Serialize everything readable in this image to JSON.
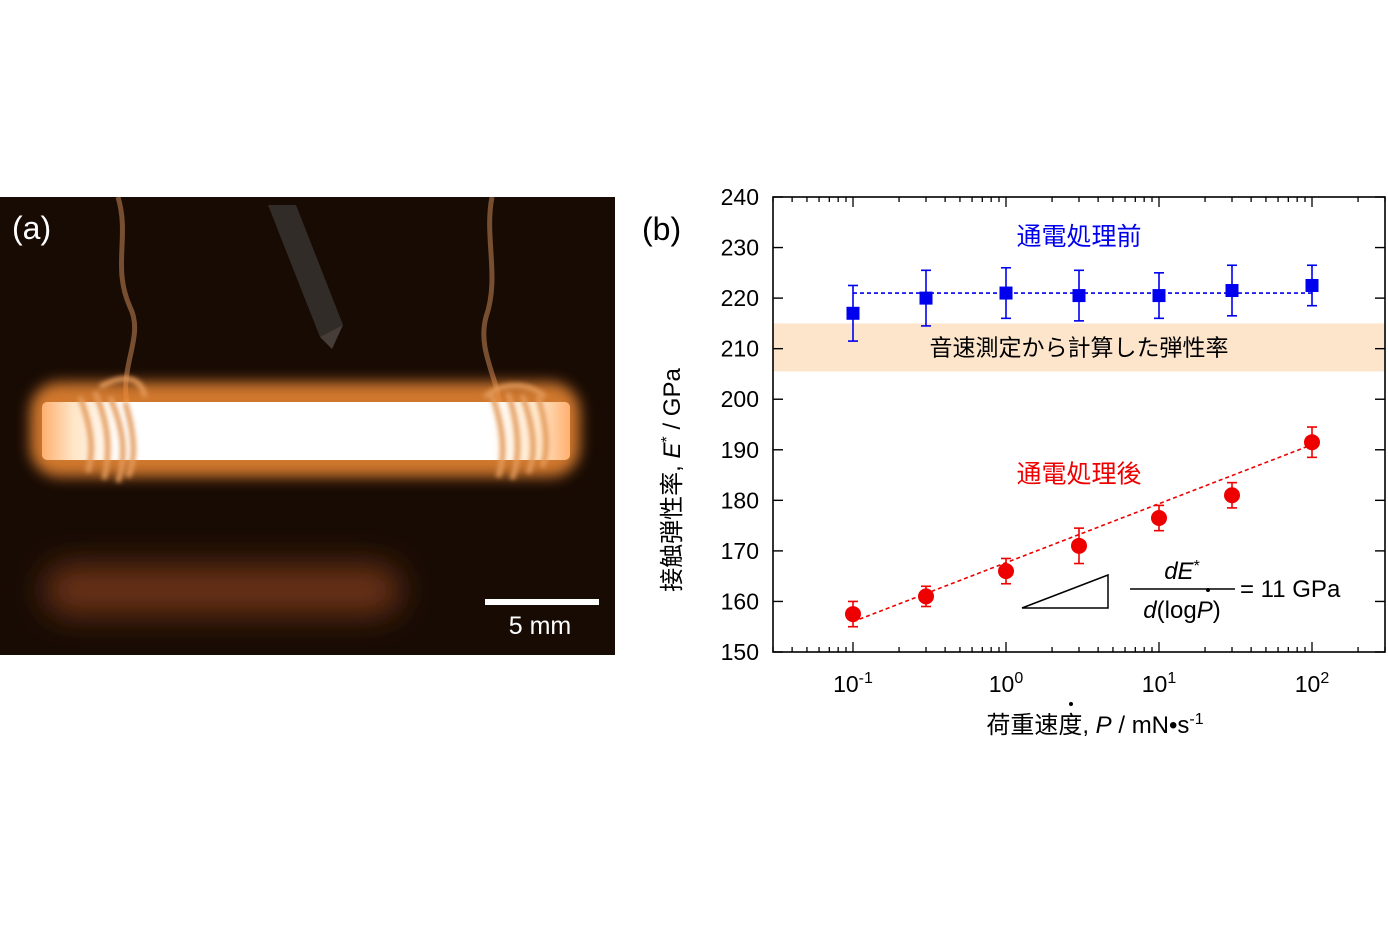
{
  "photo": {
    "panel_label": "(a)",
    "scale_bar_label": "5 mm",
    "colors": {
      "background": "#1a0c05",
      "glow": "#ffffff",
      "glow_edge": "#f59a45",
      "wire": "#c8834a"
    }
  },
  "chart_data": {
    "type": "scatter",
    "panel_label": "(b)",
    "xlabel": "荷重速度, P / mN•s-1",
    "xlabel_parts": {
      "prefix": "荷重速度, ",
      "symbol": "P",
      "unit": " / mN•s",
      "exp": "-1"
    },
    "ylabel": "接触弾性率, E* / GPa",
    "ylabel_parts": {
      "prefix": "接触弾性率, ",
      "symbol": "E",
      "sup": "*",
      "unit": " / GPa"
    },
    "x_scale": "log",
    "xlim": [
      0.03,
      300
    ],
    "ylim": [
      150,
      240
    ],
    "x_tick_labels": [
      {
        "value": 0.1,
        "base": "10",
        "exp": "-1"
      },
      {
        "value": 1,
        "base": "10",
        "exp": "0"
      },
      {
        "value": 10,
        "base": "10",
        "exp": "1"
      },
      {
        "value": 100,
        "base": "10",
        "exp": "2"
      }
    ],
    "y_ticks": [
      150,
      160,
      170,
      180,
      190,
      200,
      210,
      220,
      230,
      240
    ],
    "y_tick_labels": [
      "150",
      "160",
      "170",
      "180",
      "190",
      "200",
      "210",
      "220",
      "230",
      "240"
    ],
    "grid": false,
    "series": [
      {
        "name": "通電処理前",
        "color": "#0000ee",
        "marker": "square",
        "line": "dotted",
        "points": [
          {
            "x": 0.1,
            "y": 217,
            "err": 5.5
          },
          {
            "x": 0.3,
            "y": 220,
            "err": 5.5
          },
          {
            "x": 1,
            "y": 221,
            "err": 5
          },
          {
            "x": 3,
            "y": 220.5,
            "err": 5
          },
          {
            "x": 10,
            "y": 220.5,
            "err": 4.5
          },
          {
            "x": 30,
            "y": 221.5,
            "err": 5
          },
          {
            "x": 100,
            "y": 222.5,
            "err": 4
          }
        ],
        "fit_line": {
          "x": [
            0.1,
            100
          ],
          "y": [
            221,
            221
          ]
        }
      },
      {
        "name": "通電処理後",
        "color": "#ee0000",
        "marker": "circle",
        "line": "dotted",
        "points": [
          {
            "x": 0.1,
            "y": 157.5,
            "err": 2.5
          },
          {
            "x": 0.3,
            "y": 161,
            "err": 2
          },
          {
            "x": 1,
            "y": 166,
            "err": 2.5
          },
          {
            "x": 3,
            "y": 171,
            "err": 3.5
          },
          {
            "x": 10,
            "y": 176.5,
            "err": 2.5
          },
          {
            "x": 30,
            "y": 181,
            "err": 2.5
          },
          {
            "x": 100,
            "y": 191.5,
            "err": 3
          }
        ],
        "fit_line": {
          "x": [
            0.1,
            100
          ],
          "y": [
            156,
            191
          ]
        }
      }
    ],
    "band": {
      "y": [
        205.5,
        215
      ],
      "label": "音速測定から計算した弾性率",
      "color": "#fde5cc"
    },
    "annotations": {
      "slope_numerator": {
        "prefix": "d",
        "symbol": "E",
        "sup": "*"
      },
      "slope_denominator": {
        "prefix": "d",
        "open": "(log",
        "symbol": "P",
        "close": ")"
      },
      "slope_value": "= 11 GPa"
    }
  }
}
